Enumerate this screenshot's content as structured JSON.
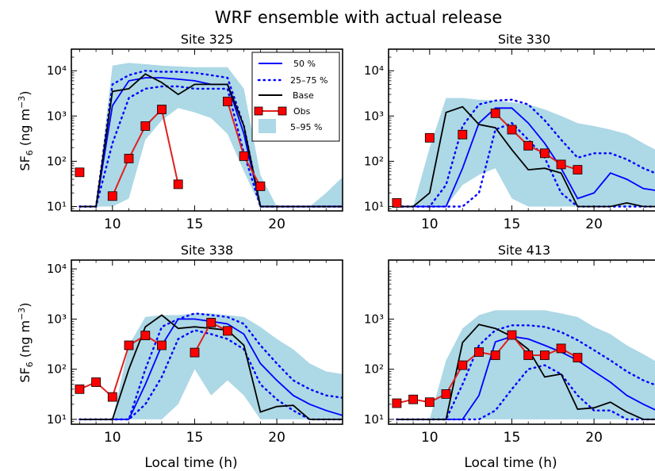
{
  "suptitle": "WRF ensemble with actual release",
  "ylabel_main": "SF",
  "ylabel_sub": "6",
  "ylabel_rest": " (ng m",
  "ylabel_sup": "−3",
  "ylabel_close": ")",
  "xlabel": "Local time (h)",
  "legend": [
    "50 %",
    "25–75 %",
    "Base",
    "Obs",
    "5–95 %"
  ],
  "colors": {
    "band": "#add8e6",
    "median": "#0000ff",
    "quartiles": "#0000ff",
    "base": "#000000",
    "obs_line": "#e02020",
    "obs_marker": "#ff0000"
  },
  "chart_data": [
    {
      "type": "line",
      "title": "Site 325",
      "yscale": "log",
      "xlim": [
        7.5,
        24
      ],
      "ylim": [
        8,
        30000
      ],
      "xticks": [
        10,
        15,
        20
      ],
      "yticks": [
        10,
        100,
        1000,
        10000
      ],
      "legend_position": "top-right",
      "band_5_95": {
        "x": [
          9,
          10,
          11,
          12,
          13,
          14,
          15,
          16,
          17,
          18,
          19,
          20,
          21,
          22,
          23,
          24
        ],
        "lower": [
          10,
          10,
          15,
          300,
          800,
          1500,
          1200,
          900,
          400,
          60,
          10,
          10,
          10,
          10,
          10,
          10
        ],
        "upper": [
          10,
          13000,
          15000,
          14000,
          13000,
          12500,
          12000,
          12000,
          12000,
          4000,
          50,
          10,
          10,
          10,
          20,
          45
        ]
      },
      "median": {
        "x": [
          8,
          9,
          10,
          11,
          12,
          13,
          14,
          15,
          16,
          17,
          18,
          19,
          20,
          21,
          22,
          23,
          24
        ],
        "y": [
          10,
          10,
          1700,
          6000,
          7000,
          7000,
          6500,
          6000,
          5000,
          5000,
          400,
          10,
          10,
          10,
          10,
          10,
          10
        ]
      },
      "p25": {
        "x": [
          8,
          9,
          10,
          11,
          12,
          13,
          14,
          15,
          16,
          17,
          18,
          19,
          20,
          21,
          22,
          23,
          24
        ],
        "y": [
          10,
          10,
          250,
          2500,
          4000,
          4500,
          4500,
          4000,
          4000,
          4000,
          150,
          10,
          10,
          10,
          10,
          10,
          10
        ]
      },
      "p75": {
        "x": [
          8,
          9,
          10,
          11,
          12,
          13,
          14,
          15,
          16,
          17,
          18,
          19,
          20,
          21,
          22,
          23,
          24
        ],
        "y": [
          10,
          10,
          5000,
          8000,
          10000,
          9500,
          9500,
          9000,
          8000,
          7000,
          600,
          10,
          10,
          10,
          10,
          10,
          10
        ]
      },
      "base": {
        "x": [
          8,
          9,
          10,
          11,
          12,
          13,
          14,
          15,
          16,
          17,
          18,
          19,
          20,
          21,
          22,
          23,
          24
        ],
        "y": [
          10,
          10,
          3500,
          4000,
          8500,
          5500,
          3000,
          5000,
          5000,
          5000,
          600,
          10,
          10,
          10,
          10,
          10,
          10
        ]
      },
      "obs": {
        "x": [
          8,
          10,
          11,
          12,
          13,
          14,
          17,
          18,
          19
        ],
        "y": [
          57,
          17,
          115,
          600,
          1400,
          31,
          2100,
          130,
          28
        ]
      },
      "obs_segments": [
        [
          1,
          2,
          3,
          4,
          5
        ],
        [
          6,
          7,
          8
        ]
      ]
    },
    {
      "type": "line",
      "title": "Site 330",
      "yscale": "log",
      "xlim": [
        7.5,
        24
      ],
      "ylim": [
        8,
        30000
      ],
      "xticks": [
        10,
        15,
        20
      ],
      "yticks": [
        10,
        100,
        1000,
        10000
      ],
      "band_5_95": {
        "x": [
          9,
          10,
          11,
          12,
          13,
          14,
          15,
          16,
          17,
          18,
          19,
          20,
          21,
          22,
          23,
          24
        ],
        "lower": [
          10,
          10,
          10,
          30,
          50,
          70,
          15,
          10,
          10,
          10,
          10,
          10,
          10,
          10,
          10,
          10
        ],
        "upper": [
          10,
          200,
          2500,
          2500,
          2300,
          2200,
          2000,
          1800,
          1400,
          1000,
          700,
          600,
          500,
          400,
          250,
          160
        ]
      },
      "median": {
        "x": [
          8,
          9,
          10,
          11,
          12,
          13,
          14,
          15,
          16,
          17,
          18,
          19,
          20,
          21,
          22,
          23,
          24
        ],
        "y": [
          10,
          10,
          10,
          10,
          70,
          700,
          1500,
          1500,
          700,
          250,
          70,
          15,
          20,
          55,
          40,
          25,
          22
        ]
      },
      "p25": {
        "x": [
          8,
          9,
          10,
          11,
          12,
          13,
          14,
          15,
          16,
          17,
          18,
          19,
          20,
          21,
          22,
          23,
          24
        ],
        "y": [
          10,
          10,
          10,
          10,
          10,
          20,
          500,
          700,
          300,
          120,
          20,
          10,
          10,
          10,
          10,
          10,
          10
        ]
      },
      "p75": {
        "x": [
          8,
          9,
          10,
          11,
          12,
          13,
          14,
          15,
          16,
          17,
          18,
          19,
          20,
          21,
          22,
          23,
          24
        ],
        "y": [
          10,
          10,
          10,
          30,
          600,
          1800,
          2200,
          2300,
          1800,
          800,
          300,
          120,
          150,
          150,
          110,
          70,
          50
        ]
      },
      "base": {
        "x": [
          8,
          9,
          10,
          11,
          12,
          13,
          14,
          15,
          16,
          17,
          18,
          19,
          20,
          21,
          22,
          23,
          24
        ],
        "y": [
          10,
          10,
          20,
          1200,
          1600,
          650,
          550,
          180,
          65,
          70,
          55,
          10,
          10,
          10,
          12,
          10,
          10
        ]
      },
      "obs": {
        "x": [
          8,
          10,
          12,
          14,
          15,
          16,
          17,
          18,
          19
        ],
        "y": [
          12,
          330,
          390,
          1150,
          500,
          220,
          150,
          85,
          65
        ]
      },
      "obs_segments": [
        [
          3,
          4,
          5,
          6,
          7,
          8
        ]
      ]
    },
    {
      "type": "line",
      "title": "Site 338",
      "yscale": "log",
      "xlim": [
        7.5,
        24
      ],
      "ylim": [
        8,
        15000
      ],
      "xticks": [
        10,
        15,
        20
      ],
      "yticks": [
        10,
        100,
        1000,
        10000
      ],
      "band_5_95": {
        "x": [
          10,
          11,
          12,
          13,
          14,
          15,
          16,
          17,
          18,
          19,
          20,
          21,
          22,
          23,
          24
        ],
        "lower": [
          10,
          10,
          10,
          10,
          20,
          100,
          30,
          60,
          30,
          10,
          10,
          10,
          10,
          10,
          10
        ],
        "upper": [
          10,
          300,
          1100,
          1200,
          1200,
          1300,
          1300,
          1200,
          1100,
          700,
          400,
          250,
          130,
          90,
          80
        ]
      },
      "median": {
        "x": [
          8,
          9,
          10,
          11,
          12,
          13,
          14,
          15,
          16,
          17,
          18,
          19,
          20,
          21,
          22,
          23,
          24
        ],
        "y": [
          10,
          10,
          10,
          10,
          50,
          300,
          1000,
          1000,
          900,
          800,
          500,
          130,
          60,
          30,
          20,
          15,
          12
        ]
      },
      "p25": {
        "x": [
          8,
          9,
          10,
          11,
          12,
          13,
          14,
          15,
          16,
          17,
          18,
          19,
          20,
          21,
          22,
          23,
          24
        ],
        "y": [
          10,
          10,
          10,
          10,
          20,
          70,
          400,
          600,
          500,
          400,
          250,
          50,
          25,
          15,
          10,
          10,
          10
        ]
      },
      "p75": {
        "x": [
          8,
          9,
          10,
          11,
          12,
          13,
          14,
          15,
          16,
          17,
          18,
          19,
          20,
          21,
          22,
          23,
          24
        ],
        "y": [
          10,
          10,
          10,
          10,
          100,
          700,
          1000,
          1300,
          1200,
          1100,
          800,
          300,
          130,
          60,
          40,
          30,
          27
        ]
      },
      "base": {
        "x": [
          8,
          9,
          10,
          11,
          12,
          13,
          14,
          15,
          16,
          17,
          18,
          19,
          20,
          21,
          22,
          23,
          24
        ],
        "y": [
          10,
          10,
          10,
          100,
          700,
          1200,
          650,
          700,
          650,
          600,
          300,
          14,
          18,
          19,
          10,
          10,
          10
        ]
      },
      "obs": {
        "x": [
          8,
          9,
          10,
          11,
          12,
          13,
          15,
          16,
          17
        ],
        "y": [
          40,
          55,
          28,
          300,
          470,
          300,
          215,
          850,
          580
        ]
      },
      "obs_segments": [
        [
          0,
          1,
          2,
          3,
          4,
          5
        ],
        [
          6,
          7,
          8
        ]
      ]
    },
    {
      "type": "line",
      "title": "Site 413",
      "yscale": "log",
      "xlim": [
        7.5,
        24
      ],
      "ylim": [
        8,
        15000
      ],
      "xticks": [
        10,
        15,
        20
      ],
      "yticks": [
        10,
        100,
        1000
      ],
      "band_5_95": {
        "x": [
          10,
          11,
          12,
          13,
          14,
          15,
          16,
          17,
          18,
          19,
          20,
          21,
          22,
          23,
          24
        ],
        "lower": [
          10,
          10,
          10,
          10,
          10,
          10,
          10,
          10,
          10,
          10,
          10,
          10,
          10,
          10,
          10
        ],
        "upper": [
          10,
          150,
          650,
          1200,
          1500,
          1500,
          1500,
          1500,
          1300,
          1100,
          700,
          500,
          300,
          200,
          130
        ]
      },
      "median": {
        "x": [
          8,
          9,
          10,
          11,
          12,
          13,
          14,
          15,
          16,
          17,
          18,
          19,
          20,
          21,
          22,
          23,
          24
        ],
        "y": [
          10,
          10,
          10,
          10,
          10,
          30,
          350,
          450,
          400,
          300,
          220,
          150,
          90,
          55,
          30,
          20,
          14
        ]
      },
      "p25": {
        "x": [
          8,
          9,
          10,
          11,
          12,
          13,
          14,
          15,
          16,
          17,
          18,
          19,
          20,
          21,
          22,
          23,
          24
        ],
        "y": [
          10,
          10,
          10,
          10,
          10,
          10,
          15,
          40,
          100,
          120,
          80,
          30,
          15,
          15,
          10,
          10,
          10
        ]
      },
      "p75": {
        "x": [
          8,
          9,
          10,
          11,
          12,
          13,
          14,
          15,
          16,
          17,
          18,
          19,
          20,
          21,
          22,
          23,
          24
        ],
        "y": [
          10,
          10,
          10,
          10,
          50,
          300,
          600,
          750,
          750,
          700,
          550,
          380,
          240,
          150,
          90,
          60,
          45
        ]
      },
      "base": {
        "x": [
          8,
          9,
          10,
          11,
          12,
          13,
          14,
          15,
          16,
          17,
          18,
          19,
          20,
          21,
          22,
          23,
          24
        ],
        "y": [
          10,
          10,
          10,
          10,
          340,
          780,
          650,
          450,
          250,
          70,
          80,
          16,
          17,
          22,
          14,
          10,
          10
        ]
      },
      "obs": {
        "x": [
          8,
          9,
          10,
          11,
          12,
          13,
          14,
          15,
          16,
          17,
          18,
          19
        ],
        "y": [
          21,
          25,
          22,
          32,
          120,
          220,
          190,
          480,
          190,
          190,
          260,
          170
        ]
      },
      "obs_segments": [
        [
          0,
          1,
          2,
          3,
          4,
          5,
          6,
          7,
          8,
          9,
          10,
          11
        ]
      ]
    }
  ]
}
